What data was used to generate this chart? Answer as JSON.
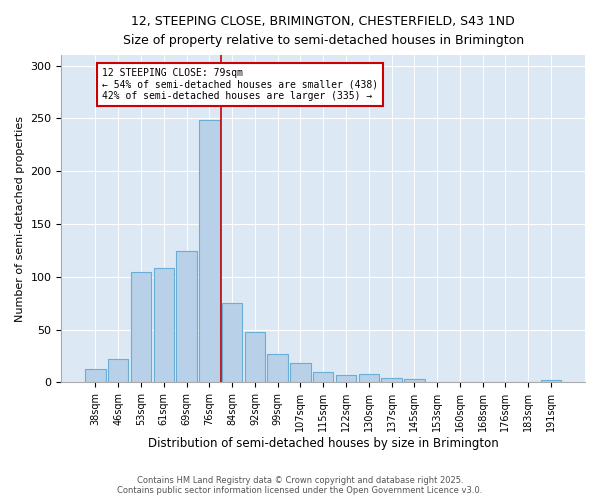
{
  "title_line1": "12, STEEPING CLOSE, BRIMINGTON, CHESTERFIELD, S43 1ND",
  "title_line2": "Size of property relative to semi-detached houses in Brimington",
  "xlabel": "Distribution of semi-detached houses by size in Brimington",
  "ylabel": "Number of semi-detached properties",
  "categories": [
    "38sqm",
    "46sqm",
    "53sqm",
    "61sqm",
    "69sqm",
    "76sqm",
    "84sqm",
    "92sqm",
    "99sqm",
    "107sqm",
    "115sqm",
    "122sqm",
    "130sqm",
    "137sqm",
    "145sqm",
    "153sqm",
    "160sqm",
    "168sqm",
    "176sqm",
    "183sqm",
    "191sqm"
  ],
  "values": [
    13,
    22,
    105,
    108,
    124,
    249,
    75,
    48,
    27,
    18,
    10,
    7,
    8,
    4,
    3,
    0,
    0,
    0,
    0,
    0,
    2
  ],
  "bar_color": "#b8d0e8",
  "bar_edge_color": "#6aaed6",
  "vline_color": "#cc0000",
  "annotation_text": "12 STEEPING CLOSE: 79sqm\n← 54% of semi-detached houses are smaller (438)\n42% of semi-detached houses are larger (335) →",
  "annotation_box_color": "#ffffff",
  "annotation_box_edge": "#cc0000",
  "ylim": [
    0,
    310
  ],
  "yticks": [
    0,
    50,
    100,
    150,
    200,
    250,
    300
  ],
  "footer_text": "Contains HM Land Registry data © Crown copyright and database right 2025.\nContains public sector information licensed under the Open Government Licence v3.0.",
  "bg_color": "#ffffff",
  "plot_bg_color": "#dce9f5",
  "vline_bar_index": 5
}
